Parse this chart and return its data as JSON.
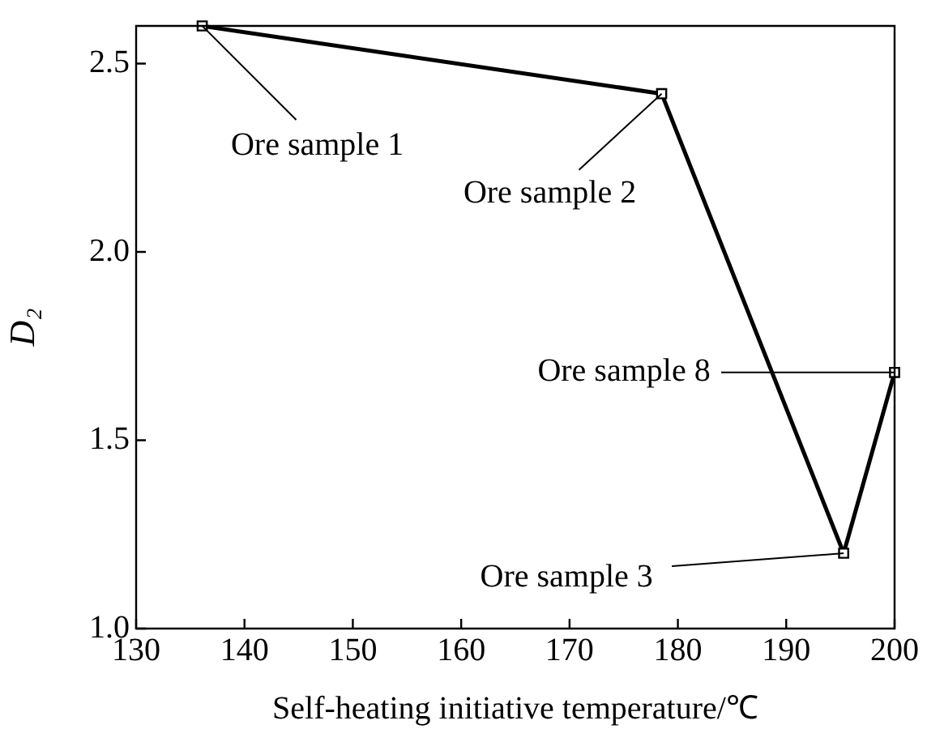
{
  "chart_data": {
    "type": "line",
    "xlabel": "Self-heating initiative temperature/℃",
    "ylabel": "D₂",
    "x": [
      136.1,
      178.5,
      195.3,
      200
    ],
    "series": [
      {
        "color": "#000000",
        "values": [
          2.6,
          2.42,
          1.2,
          1.68
        ]
      }
    ],
    "xlim": [
      130,
      200
    ],
    "xticks": [
      130,
      140,
      150,
      160,
      170,
      180,
      190,
      200
    ],
    "ylim": [
      1.0,
      2.6
    ],
    "yticks": [
      {
        "value": 1.0,
        "label": "1.0"
      },
      {
        "value": 1.5,
        "label": "1.5"
      },
      {
        "value": 2.0,
        "label": "2.0"
      },
      {
        "value": 2.5,
        "label": "2.5"
      }
    ],
    "grid": false,
    "legend": false,
    "marker": "square",
    "line_style": "solid",
    "annotations": [
      {
        "text": "Ore sample 1",
        "x": 136.1,
        "y": 2.6
      },
      {
        "text": "Ore sample 2",
        "x": 178.5,
        "y": 2.42
      },
      {
        "text": "Ore sample 3",
        "x": 195.3,
        "y": 1.2
      },
      {
        "text": "Ore sample 8",
        "x": 200,
        "y": 1.68
      }
    ]
  }
}
